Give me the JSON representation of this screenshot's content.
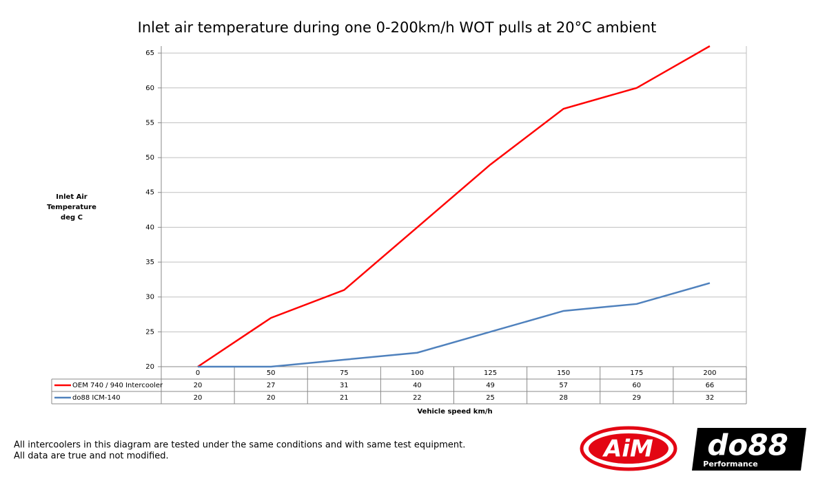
{
  "chart_data": {
    "type": "line",
    "title": "Inlet air temperature during one 0-200km/h WOT pulls at 20°C ambient",
    "ylabel": [
      "Inlet Air",
      "Temperature",
      "deg C"
    ],
    "xlabel": "Vehicle speed km/h",
    "categories": [
      "0",
      "50",
      "75",
      "100",
      "125",
      "150",
      "175",
      "200"
    ],
    "series": [
      {
        "name": "OEM 740 / 940 Intercooler",
        "color": "#ff0000",
        "values": [
          20,
          27,
          31,
          40,
          49,
          57,
          60,
          66
        ]
      },
      {
        "name": "do88 ICM-140",
        "color": "#4f81bd",
        "values": [
          20,
          20,
          21,
          22,
          25,
          28,
          29,
          32
        ]
      }
    ],
    "ylim": [
      20,
      66
    ],
    "yticks": [
      20,
      25,
      30,
      35,
      40,
      45,
      50,
      55,
      60,
      65
    ],
    "grid": true
  },
  "notes": [
    "All intercoolers in this diagram are tested under the same conditions and with same test equipment.",
    "All data are true and not modified."
  ],
  "logos": [
    "AiM",
    "do88",
    "Performance"
  ]
}
